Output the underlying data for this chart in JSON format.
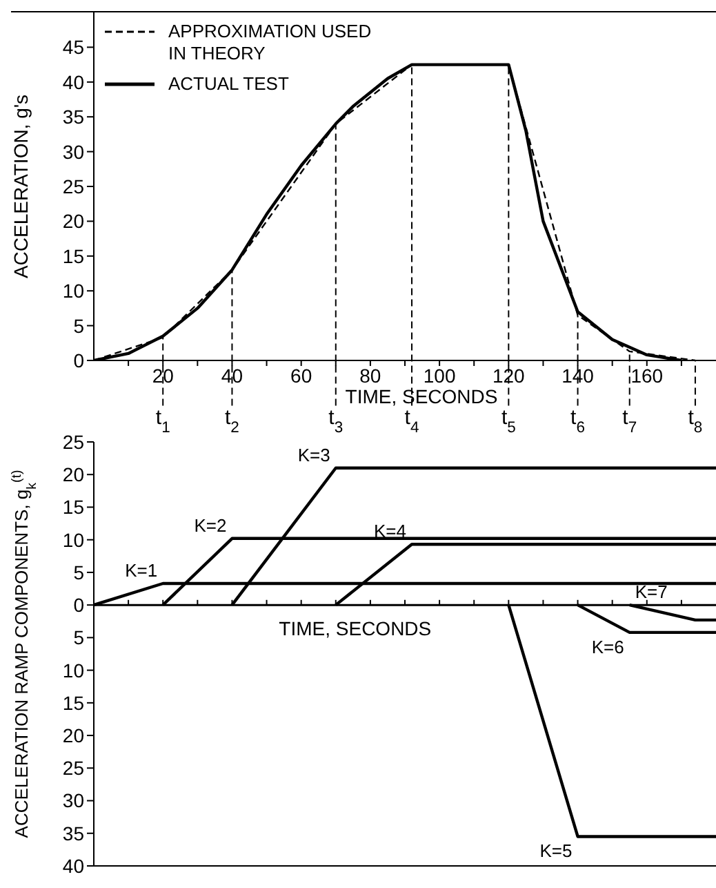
{
  "chart_data": [
    {
      "type": "line",
      "xlabel": "TIME, SECONDS",
      "ylabel": "ACCELERATION, g's",
      "xlim": [
        0,
        180
      ],
      "ylim": [
        0,
        50
      ],
      "xticks": [
        {
          "value": 10,
          "label": null
        },
        20,
        {
          "value": 30,
          "label": null
        },
        40,
        {
          "value": 50,
          "label": null
        },
        60,
        {
          "value": 70,
          "label": null
        },
        80,
        {
          "value": 90,
          "label": null
        },
        100,
        {
          "value": 110,
          "label": null
        },
        120,
        {
          "value": 130,
          "label": null
        },
        140,
        {
          "value": 150,
          "label": null
        },
        160,
        {
          "value": 170,
          "label": null
        }
      ],
      "yticks": [
        0,
        5,
        10,
        15,
        20,
        25,
        30,
        35,
        40,
        45
      ],
      "marker": "none",
      "legend": "top left",
      "series": [
        {
          "name": "APPROXIMATION USED IN THEORY",
          "color": "#000000",
          "line_style": "dashed",
          "x": [
            0,
            20,
            40,
            70,
            92,
            120,
            140,
            155,
            174
          ],
          "values": [
            0,
            3.3,
            13,
            34,
            42.5,
            42.5,
            6.5,
            1.3,
            0
          ]
        },
        {
          "name": "ACTUAL TEST",
          "color": "#000000",
          "line_style": "solid",
          "x": [
            0,
            10,
            20,
            30,
            40,
            50,
            60,
            70,
            75,
            85,
            92,
            120,
            125,
            130,
            140,
            150,
            160,
            170
          ],
          "values": [
            0,
            1,
            3.5,
            7.5,
            13,
            21,
            28,
            34,
            36.5,
            40.5,
            42.5,
            42.5,
            33,
            20,
            7,
            3,
            0.8,
            0
          ]
        }
      ],
      "ref_lines": [
        {
          "axis": "x",
          "value": 20,
          "label": "t$_{1}$",
          "line_style": "dashed"
        },
        {
          "axis": "x",
          "value": 40,
          "label": "t$_{2}$",
          "line_style": "dashed"
        },
        {
          "axis": "x",
          "value": 70,
          "label": "t$_{3}$",
          "line_style": "dashed"
        },
        {
          "axis": "x",
          "value": 92,
          "label": "t$_{4}$",
          "line_style": "dashed"
        },
        {
          "axis": "x",
          "value": 120,
          "label": "t$_{5}$",
          "line_style": "dashed"
        },
        {
          "axis": "x",
          "value": 140,
          "label": "t$_{6}$",
          "line_style": "dashed"
        },
        {
          "axis": "x",
          "value": 155,
          "label": "t$_{7}$",
          "line_style": "dashed"
        },
        {
          "axis": "x",
          "value": 174,
          "label": "t$_{8}$",
          "line_style": "dashed"
        }
      ]
    },
    {
      "type": "line",
      "xlabel": "TIME, SECONDS",
      "ylabel": "ACCELERATION RAMP COMPONENTS, g$_{k}$$^{(t)}$",
      "xlim": [
        0,
        180
      ],
      "ylim": [
        -40,
        25
      ],
      "tick_labels": "y",
      "xticks": [
        {
          "value": 10,
          "label": null
        },
        {
          "value": 20,
          "label": null
        },
        {
          "value": 30,
          "label": null
        },
        {
          "value": 40,
          "label": null
        },
        {
          "value": 50,
          "label": null
        },
        {
          "value": 60,
          "label": null
        },
        {
          "value": 70,
          "label": null
        },
        {
          "value": 80,
          "label": null
        },
        {
          "value": 90,
          "label": null
        },
        {
          "value": 100,
          "label": null
        },
        {
          "value": 110,
          "label": null
        },
        {
          "value": 120,
          "label": null
        },
        {
          "value": 130,
          "label": null
        },
        {
          "value": 140,
          "label": null
        },
        {
          "value": 150,
          "label": null
        },
        {
          "value": 160,
          "label": null
        },
        {
          "value": 170,
          "label": null
        }
      ],
      "yticks": [
        {
          "value": -40,
          "label": "40"
        },
        {
          "value": -35,
          "label": "35"
        },
        {
          "value": -30,
          "label": "30"
        },
        {
          "value": -25,
          "label": "25"
        },
        {
          "value": -20,
          "label": "20"
        },
        {
          "value": -15,
          "label": "15"
        },
        {
          "value": -10,
          "label": "10"
        },
        {
          "value": -5,
          "label": "5"
        },
        0,
        5,
        10,
        15,
        20,
        25
      ],
      "marker": "none",
      "series": [
        {
          "name": "K=1",
          "color": "#000000",
          "x": [
            0,
            20,
            180
          ],
          "values": [
            0,
            3.3,
            3.3
          ]
        },
        {
          "name": "K=2",
          "color": "#000000",
          "x": [
            20,
            40,
            180
          ],
          "values": [
            0,
            10.2,
            10.2
          ]
        },
        {
          "name": "K=3",
          "color": "#000000",
          "x": [
            40,
            70,
            180
          ],
          "values": [
            0,
            21,
            21
          ]
        },
        {
          "name": "K=4",
          "color": "#000000",
          "x": [
            70,
            92,
            180
          ],
          "values": [
            0,
            9.3,
            9.3
          ]
        },
        {
          "name": "K=5",
          "color": "#000000",
          "x": [
            120,
            140,
            180
          ],
          "values": [
            0,
            -35.5,
            -35.5
          ]
        },
        {
          "name": "K=6",
          "color": "#000000",
          "x": [
            140,
            155,
            180
          ],
          "values": [
            0,
            -4.2,
            -4.2
          ]
        },
        {
          "name": "K=7",
          "color": "#000000",
          "x": [
            155,
            174,
            180
          ],
          "values": [
            0,
            -2.3,
            -2.3
          ]
        }
      ]
    }
  ]
}
